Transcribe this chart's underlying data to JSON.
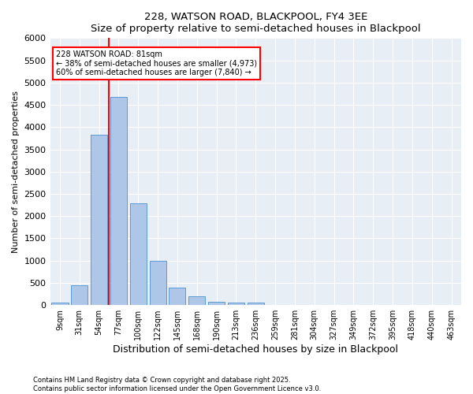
{
  "title": "228, WATSON ROAD, BLACKPOOL, FY4 3EE",
  "subtitle": "Size of property relative to semi-detached houses in Blackpool",
  "xlabel": "Distribution of semi-detached houses by size in Blackpool",
  "ylabel": "Number of semi-detached properties",
  "categories": [
    "9sqm",
    "31sqm",
    "54sqm",
    "77sqm",
    "100sqm",
    "122sqm",
    "145sqm",
    "168sqm",
    "190sqm",
    "213sqm",
    "236sqm",
    "259sqm",
    "281sqm",
    "304sqm",
    "327sqm",
    "349sqm",
    "372sqm",
    "395sqm",
    "418sqm",
    "440sqm",
    "463sqm"
  ],
  "values": [
    55,
    440,
    3820,
    4680,
    2290,
    990,
    400,
    205,
    80,
    65,
    50,
    0,
    0,
    0,
    0,
    0,
    0,
    0,
    0,
    0,
    0
  ],
  "bar_color": "#aec6e8",
  "bar_edge_color": "#5b9bd5",
  "vline_x_index": 2.5,
  "vline_color": "red",
  "annotation_text": "228 WATSON ROAD: 81sqm\n← 38% of semi-detached houses are smaller (4,973)\n60% of semi-detached houses are larger (7,840) →",
  "annotation_box_color": "white",
  "annotation_box_edge_color": "red",
  "ylim": [
    0,
    6000
  ],
  "yticks": [
    0,
    500,
    1000,
    1500,
    2000,
    2500,
    3000,
    3500,
    4000,
    4500,
    5000,
    5500,
    6000
  ],
  "background_color": "#e8eef5",
  "grid_color": "white",
  "footer_line1": "Contains HM Land Registry data © Crown copyright and database right 2025.",
  "footer_line2": "Contains public sector information licensed under the Open Government Licence v3.0."
}
